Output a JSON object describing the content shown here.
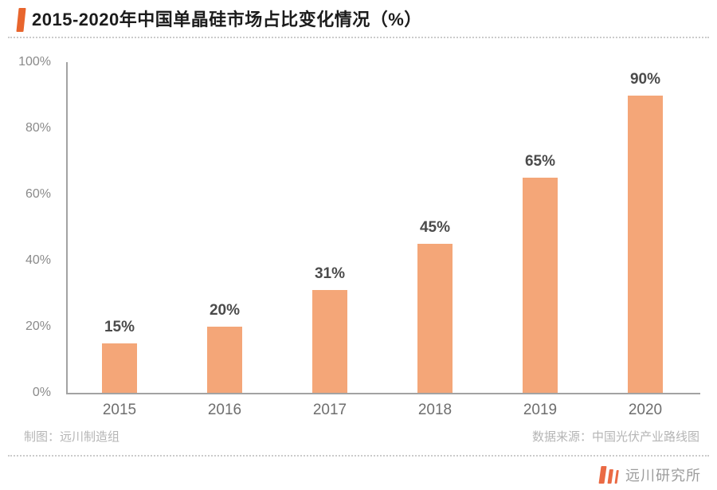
{
  "header": {
    "title": "2015-2020年中国单晶硅市场占比变化情况（%）",
    "accent_color": "#E8652D"
  },
  "chart_data": {
    "type": "bar",
    "title": "2015-2020年中国单晶硅市场占比变化情况（%）",
    "categories": [
      "2015",
      "2016",
      "2017",
      "2018",
      "2019",
      "2020"
    ],
    "values": [
      15,
      20,
      31,
      45,
      65,
      90
    ],
    "value_labels": [
      "15%",
      "20%",
      "31%",
      "45%",
      "65%",
      "90%"
    ],
    "xlabel": "",
    "ylabel": "",
    "ylim": [
      0,
      100
    ],
    "y_ticks": [
      0,
      20,
      40,
      60,
      80,
      100
    ],
    "y_tick_labels": [
      "0%",
      "20%",
      "40%",
      "60%",
      "80%",
      "100%"
    ],
    "grid": false,
    "legend": null,
    "bar_color": "#F4A678",
    "axis_color": "#A3A3A3",
    "value_label_color": "#4B4B4B",
    "tick_label_color": "#8A8A8A"
  },
  "footer": {
    "credit_left": "制图：远川制造组",
    "source_right": "数据来源：中国光伏产业路线图",
    "brand": "远川研究所",
    "brand_bar_color": "#EA6A44"
  }
}
